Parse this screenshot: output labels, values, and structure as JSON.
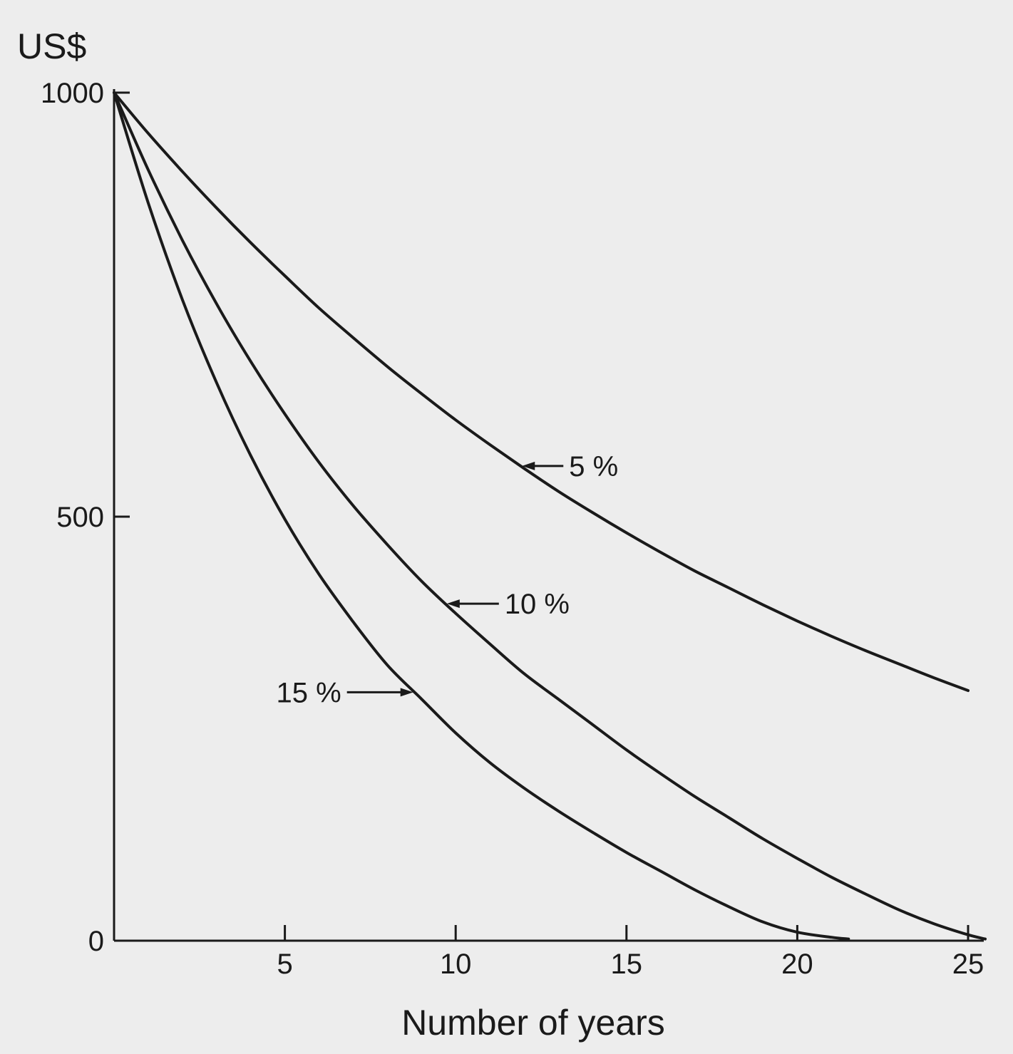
{
  "chart_data": {
    "type": "line",
    "y_unit": "US$",
    "xlabel": "Number of years",
    "ylabel": "",
    "xlim": [
      0,
      25
    ],
    "ylim": [
      0,
      1000
    ],
    "grid": false,
    "legend": "none",
    "x_ticks": [
      5,
      10,
      15,
      20,
      25
    ],
    "y_ticks": [
      0,
      500,
      1000
    ],
    "series": [
      {
        "name": "5 %",
        "x": [
          0,
          1,
          2,
          3,
          4,
          5,
          6,
          7,
          8,
          9,
          10,
          11,
          12,
          13,
          14,
          15,
          16,
          17,
          18,
          19,
          20,
          21,
          22,
          23,
          24,
          25
        ],
        "values": [
          1000,
          952,
          907,
          864,
          823,
          784,
          746,
          711,
          677,
          645,
          614,
          585,
          557,
          530,
          505,
          481,
          458,
          436,
          416,
          396,
          377,
          359,
          342,
          326,
          310,
          295
        ]
      },
      {
        "name": "10 %",
        "x": [
          0,
          1,
          2,
          3,
          4,
          5,
          6,
          7,
          8,
          9,
          10,
          11,
          12,
          13,
          14,
          15,
          16,
          17,
          18,
          19,
          20,
          21,
          22,
          23,
          24,
          25,
          25.5
        ],
        "values": [
          1000,
          909,
          826,
          751,
          683,
          621,
          564,
          513,
          467,
          424,
          386,
          350,
          315,
          285,
          255,
          225,
          197,
          170,
          145,
          120,
          97,
          75,
          55,
          36,
          20,
          7,
          2
        ]
      },
      {
        "name": "15 %",
        "x": [
          0,
          1,
          2,
          3,
          4,
          5,
          6,
          7,
          8,
          9,
          10,
          11,
          12,
          13,
          14,
          15,
          16,
          17,
          18,
          19,
          20,
          21,
          21.5
        ],
        "values": [
          1000,
          870,
          756,
          658,
          572,
          497,
          432,
          376,
          325,
          285,
          245,
          210,
          180,
          153,
          128,
          104,
          82,
          60,
          40,
          22,
          10,
          4,
          2
        ]
      }
    ]
  }
}
